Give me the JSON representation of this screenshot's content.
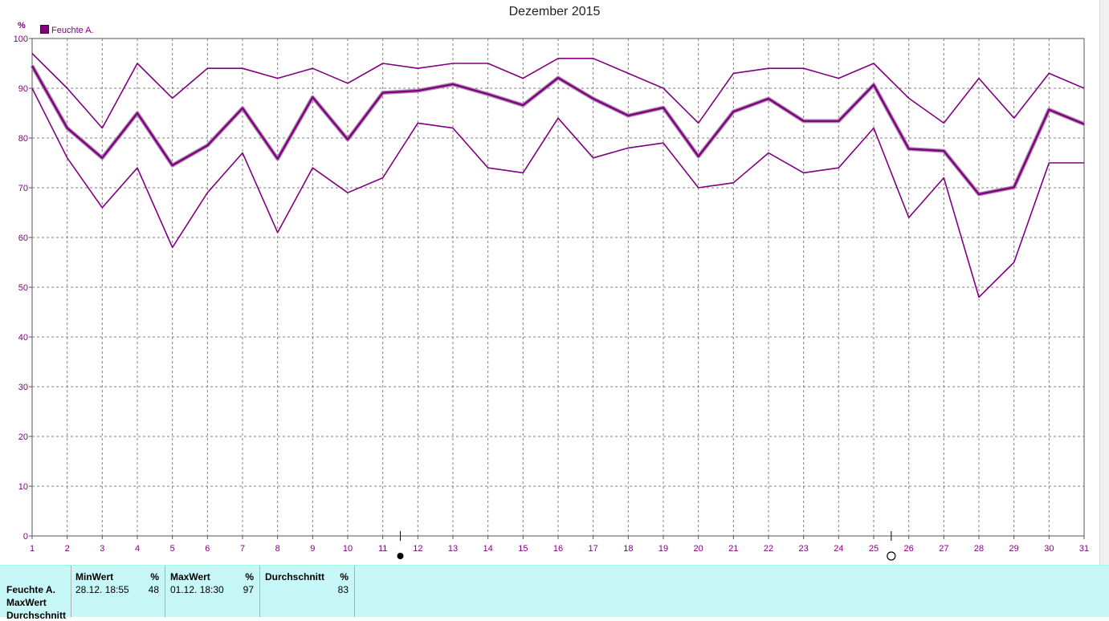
{
  "chart_data": {
    "type": "line",
    "title": "Dezember 2015",
    "ylabel": "%",
    "xlabel": "",
    "ylim": [
      0,
      100
    ],
    "yticks": [
      0,
      10,
      20,
      30,
      40,
      50,
      60,
      70,
      80,
      90,
      100
    ],
    "x": [
      1,
      2,
      3,
      4,
      5,
      6,
      7,
      8,
      9,
      10,
      11,
      12,
      13,
      14,
      15,
      16,
      17,
      18,
      19,
      20,
      21,
      22,
      23,
      24,
      25,
      26,
      27,
      28,
      29,
      30,
      31
    ],
    "grid": true,
    "legend": {
      "placement": "top-left",
      "entries": [
        "Feuchte A."
      ]
    },
    "series": [
      {
        "name": "MaxWert",
        "color": "#800080",
        "values": [
          97,
          90,
          82,
          95,
          88,
          94,
          94,
          92,
          94,
          91,
          95,
          94,
          95,
          95,
          92,
          96,
          96,
          93,
          90,
          83,
          93,
          94,
          94,
          92,
          95,
          88,
          83,
          92,
          84,
          93,
          90
        ]
      },
      {
        "name": "Durchschnitt",
        "color": "#800080",
        "bold": true,
        "values": [
          94.5,
          82,
          76,
          85,
          74.5,
          78.5,
          86,
          75.8,
          88.2,
          79.7,
          89.1,
          89.5,
          90.8,
          88.8,
          86.6,
          92.1,
          87.9,
          84.5,
          86.1,
          76.3,
          85.3,
          87.9,
          83.4,
          83.4,
          90.7,
          77.8,
          77.4,
          68.7,
          70.1,
          85.7,
          82.8
        ]
      },
      {
        "name": "MinWert",
        "color": "#800080",
        "values": [
          90,
          76,
          66,
          74,
          58,
          69,
          77,
          61,
          74,
          69,
          72,
          83,
          82,
          74,
          73,
          84,
          76,
          78,
          79,
          70,
          71,
          77,
          73,
          74,
          82,
          64,
          72,
          48,
          55,
          75,
          75
        ]
      }
    ],
    "moon_markers": [
      {
        "x": 11.5,
        "type": "full-moon",
        "symbol": "●"
      },
      {
        "x": 25.5,
        "type": "new-moon",
        "symbol": "○"
      }
    ],
    "colors": {
      "series": "#800080",
      "grid": "#808080",
      "panel_bg": "#c8f7f7"
    }
  },
  "stats": {
    "row_labels": [
      "Feuchte A.",
      "MaxWert",
      "Durchschnitt"
    ],
    "min": {
      "header": "MinWert",
      "unit": "%",
      "time": "28.12.  18:55",
      "value": "48"
    },
    "max": {
      "header": "MaxWert",
      "unit": "%",
      "time": "01.12.  18:30",
      "value": "97"
    },
    "avg": {
      "header": "Durchschnitt",
      "unit": "%",
      "value": "83"
    }
  }
}
